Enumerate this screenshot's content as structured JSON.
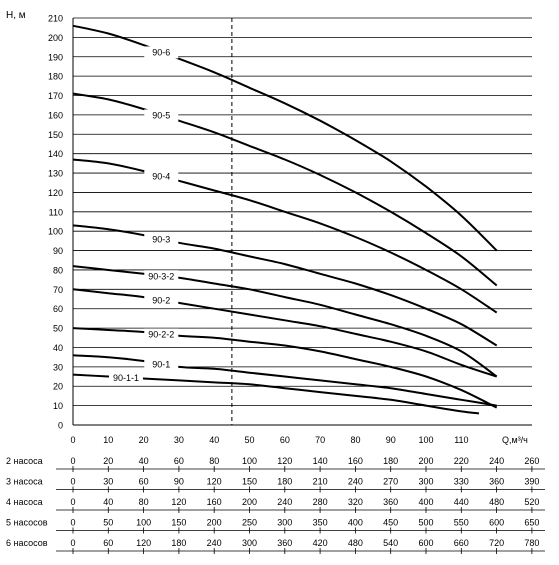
{
  "chart_data": {
    "type": "line",
    "title": "",
    "ylabel": "H, м",
    "xlabel": "Q,м³/ч",
    "xlim": [
      0,
      130
    ],
    "ylim": [
      0,
      210
    ],
    "y_ticks": [
      0,
      10,
      20,
      30,
      40,
      50,
      60,
      70,
      80,
      90,
      100,
      110,
      120,
      130,
      140,
      150,
      160,
      170,
      180,
      190,
      200,
      210
    ],
    "x_ticks": [
      0,
      10,
      20,
      30,
      40,
      50,
      60,
      70,
      80,
      90,
      100,
      110
    ],
    "grid": "horizontal",
    "reference_line_x": 45,
    "series": [
      {
        "name": "90-6",
        "label_at": 25,
        "points": [
          [
            0,
            206
          ],
          [
            10,
            202
          ],
          [
            20,
            196
          ],
          [
            30,
            189
          ],
          [
            40,
            182
          ],
          [
            50,
            174
          ],
          [
            60,
            166
          ],
          [
            70,
            157
          ],
          [
            80,
            147
          ],
          [
            90,
            136
          ],
          [
            100,
            123
          ],
          [
            110,
            108
          ],
          [
            120,
            90
          ]
        ]
      },
      {
        "name": "90-5",
        "label_at": 25,
        "points": [
          [
            0,
            171
          ],
          [
            10,
            168
          ],
          [
            20,
            163
          ],
          [
            30,
            157
          ],
          [
            40,
            151
          ],
          [
            50,
            144
          ],
          [
            60,
            137
          ],
          [
            70,
            129
          ],
          [
            80,
            120
          ],
          [
            90,
            110
          ],
          [
            100,
            99
          ],
          [
            110,
            87
          ],
          [
            120,
            72
          ]
        ]
      },
      {
        "name": "90-4",
        "label_at": 25,
        "points": [
          [
            0,
            137
          ],
          [
            10,
            135
          ],
          [
            20,
            131
          ],
          [
            30,
            126
          ],
          [
            40,
            121
          ],
          [
            50,
            116
          ],
          [
            60,
            110
          ],
          [
            70,
            104
          ],
          [
            80,
            97
          ],
          [
            90,
            89
          ],
          [
            100,
            80
          ],
          [
            110,
            70
          ],
          [
            120,
            58
          ]
        ]
      },
      {
        "name": "90-3",
        "label_at": 25,
        "points": [
          [
            0,
            103
          ],
          [
            10,
            101
          ],
          [
            20,
            98
          ],
          [
            30,
            94
          ],
          [
            40,
            91
          ],
          [
            50,
            87
          ],
          [
            60,
            83
          ],
          [
            70,
            78
          ],
          [
            80,
            73
          ],
          [
            90,
            67
          ],
          [
            100,
            60
          ],
          [
            110,
            52
          ],
          [
            120,
            41
          ]
        ]
      },
      {
        "name": "90-3-2",
        "label_at": 25,
        "points": [
          [
            0,
            82
          ],
          [
            10,
            80
          ],
          [
            20,
            78
          ],
          [
            30,
            76
          ],
          [
            40,
            73
          ],
          [
            50,
            70
          ],
          [
            60,
            66
          ],
          [
            70,
            62
          ],
          [
            80,
            57
          ],
          [
            90,
            52
          ],
          [
            100,
            46
          ],
          [
            110,
            38
          ],
          [
            120,
            25
          ]
        ]
      },
      {
        "name": "90-2",
        "label_at": 25,
        "points": [
          [
            0,
            70
          ],
          [
            10,
            68
          ],
          [
            20,
            66
          ],
          [
            30,
            63
          ],
          [
            40,
            60
          ],
          [
            50,
            57
          ],
          [
            60,
            54
          ],
          [
            70,
            51
          ],
          [
            80,
            47
          ],
          [
            90,
            43
          ],
          [
            100,
            38
          ],
          [
            110,
            31
          ],
          [
            120,
            25
          ]
        ]
      },
      {
        "name": "90-2-2",
        "label_at": 25,
        "points": [
          [
            0,
            50
          ],
          [
            10,
            49
          ],
          [
            20,
            48
          ],
          [
            30,
            46
          ],
          [
            40,
            45
          ],
          [
            50,
            43
          ],
          [
            60,
            41
          ],
          [
            70,
            38
          ],
          [
            80,
            34
          ],
          [
            90,
            30
          ],
          [
            100,
            25
          ],
          [
            110,
            18
          ],
          [
            120,
            9
          ]
        ]
      },
      {
        "name": "90-1",
        "label_at": 25,
        "points": [
          [
            0,
            36
          ],
          [
            10,
            35
          ],
          [
            20,
            33
          ],
          [
            30,
            30
          ],
          [
            40,
            29
          ],
          [
            50,
            27
          ],
          [
            60,
            25
          ],
          [
            70,
            23
          ],
          [
            80,
            21
          ],
          [
            90,
            19
          ],
          [
            100,
            16
          ],
          [
            110,
            13
          ],
          [
            120,
            10
          ]
        ]
      },
      {
        "name": "90-1-1",
        "label_at": 15,
        "points": [
          [
            0,
            26
          ],
          [
            10,
            25
          ],
          [
            20,
            24
          ],
          [
            30,
            23
          ],
          [
            40,
            22
          ],
          [
            50,
            21
          ],
          [
            60,
            19
          ],
          [
            70,
            17
          ],
          [
            80,
            15
          ],
          [
            90,
            13
          ],
          [
            100,
            10
          ],
          [
            110,
            7
          ],
          [
            115,
            6
          ]
        ]
      }
    ],
    "flow_table": [
      {
        "label": "2 насоса",
        "values": [
          "0",
          "20",
          "40",
          "60",
          "80",
          "100",
          "120",
          "140",
          "160",
          "180",
          "200",
          "220",
          "240",
          "260"
        ]
      },
      {
        "label": "3 насоса",
        "values": [
          "0",
          "30",
          "60",
          "90",
          "120",
          "150",
          "180",
          "210",
          "240",
          "270",
          "300",
          "330",
          "360",
          "390"
        ]
      },
      {
        "label": "4 насоса",
        "values": [
          "0",
          "40",
          "80",
          "120",
          "160",
          "200",
          "240",
          "280",
          "320",
          "360",
          "400",
          "440",
          "480",
          "520"
        ]
      },
      {
        "label": "5 насосов",
        "values": [
          "0",
          "50",
          "100",
          "150",
          "200",
          "250",
          "300",
          "350",
          "400",
          "450",
          "500",
          "550",
          "600",
          "650"
        ]
      },
      {
        "label": "6 насосов",
        "values": [
          "0",
          "60",
          "120",
          "180",
          "240",
          "300",
          "360",
          "420",
          "480",
          "540",
          "600",
          "660",
          "720",
          "780"
        ]
      }
    ]
  }
}
